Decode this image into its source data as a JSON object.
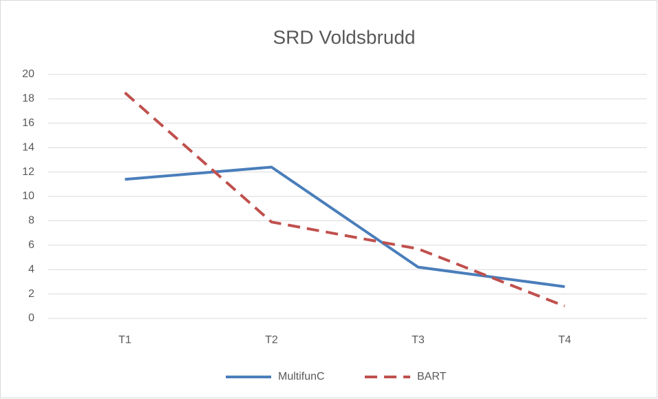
{
  "chart_data": {
    "type": "line",
    "title": "SRD Voldsbrudd",
    "categories": [
      "T1",
      "T2",
      "T3",
      "T4"
    ],
    "series": [
      {
        "name": "MultifunC",
        "color": "#4a7ebb",
        "dash": "solid",
        "values": [
          11.4,
          12.4,
          4.2,
          2.6
        ]
      },
      {
        "name": "BART",
        "color": "#c0504d",
        "dash": "dashed",
        "values": [
          18.5,
          7.9,
          5.7,
          1.0
        ]
      }
    ],
    "ylim": [
      0,
      20
    ],
    "yticks": [
      0,
      2,
      4,
      6,
      8,
      10,
      12,
      14,
      16,
      18,
      20
    ],
    "grid": true,
    "legend": "bottom"
  }
}
